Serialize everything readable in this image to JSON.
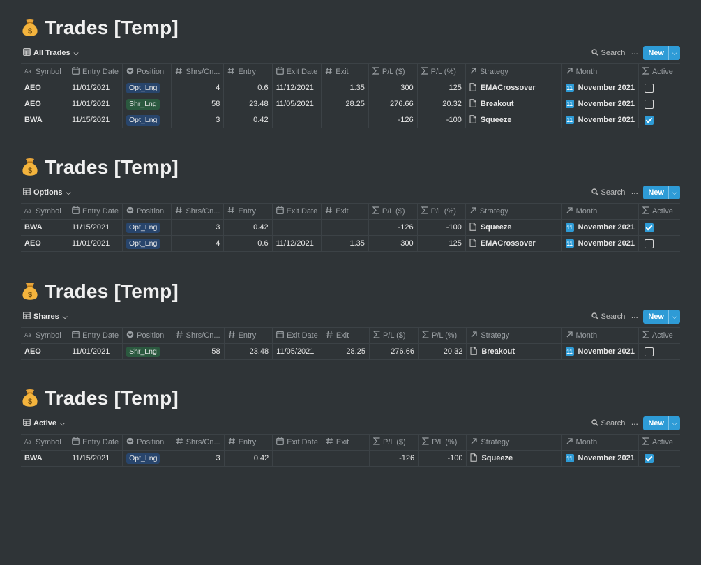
{
  "title": "Trades [Temp]",
  "toolbar": {
    "search": "Search",
    "new": "New"
  },
  "columns": [
    "Symbol",
    "Entry Date",
    "Position",
    "Shrs/Cn...",
    "Entry",
    "Exit Date",
    "Exit",
    "P/L ($)",
    "P/L (%)",
    "Strategy",
    "Month",
    "Active"
  ],
  "views": [
    {
      "name": "All Trades",
      "rows": [
        {
          "symbol": "AEO",
          "entry_date": "11/01/2021",
          "position": "Opt_Lng",
          "shares": "4",
          "entry": "0.6",
          "exit_date": "11/12/2021",
          "exit": "1.35",
          "pl_usd": "300",
          "pl_pct": "125",
          "strategy": "EMACrossover",
          "month": "November 2021",
          "month_icon": "11",
          "active": false
        },
        {
          "symbol": "AEO",
          "entry_date": "11/01/2021",
          "position": "Shr_Lng",
          "shares": "58",
          "entry": "23.48",
          "exit_date": "11/05/2021",
          "exit": "28.25",
          "pl_usd": "276.66",
          "pl_pct": "20.32",
          "strategy": "Breakout",
          "month": "November 2021",
          "month_icon": "11",
          "active": false
        },
        {
          "symbol": "BWA",
          "entry_date": "11/15/2021",
          "position": "Opt_Lng",
          "shares": "3",
          "entry": "0.42",
          "exit_date": "",
          "exit": "",
          "pl_usd": "-126",
          "pl_pct": "-100",
          "strategy": "Squeeze",
          "month": "November 2021",
          "month_icon": "11",
          "active": true
        }
      ]
    },
    {
      "name": "Options",
      "rows": [
        {
          "symbol": "BWA",
          "entry_date": "11/15/2021",
          "position": "Opt_Lng",
          "shares": "3",
          "entry": "0.42",
          "exit_date": "",
          "exit": "",
          "pl_usd": "-126",
          "pl_pct": "-100",
          "strategy": "Squeeze",
          "month": "November 2021",
          "month_icon": "11",
          "active": true
        },
        {
          "symbol": "AEO",
          "entry_date": "11/01/2021",
          "position": "Opt_Lng",
          "shares": "4",
          "entry": "0.6",
          "exit_date": "11/12/2021",
          "exit": "1.35",
          "pl_usd": "300",
          "pl_pct": "125",
          "strategy": "EMACrossover",
          "month": "November 2021",
          "month_icon": "11",
          "active": false
        }
      ]
    },
    {
      "name": "Shares",
      "rows": [
        {
          "symbol": "AEO",
          "entry_date": "11/01/2021",
          "position": "Shr_Lng",
          "shares": "58",
          "entry": "23.48",
          "exit_date": "11/05/2021",
          "exit": "28.25",
          "pl_usd": "276.66",
          "pl_pct": "20.32",
          "strategy": "Breakout",
          "month": "November 2021",
          "month_icon": "11",
          "active": false
        }
      ]
    },
    {
      "name": "Active",
      "rows": [
        {
          "symbol": "BWA",
          "entry_date": "11/15/2021",
          "position": "Opt_Lng",
          "shares": "3",
          "entry": "0.42",
          "exit_date": "",
          "exit": "",
          "pl_usd": "-126",
          "pl_pct": "-100",
          "strategy": "Squeeze",
          "month": "November 2021",
          "month_icon": "11",
          "active": true
        }
      ]
    }
  ],
  "colors": {
    "background": "#2f3437",
    "accent": "#2e9bd6",
    "opt_tag": "#28456c",
    "shr_tag": "#2b593f"
  }
}
